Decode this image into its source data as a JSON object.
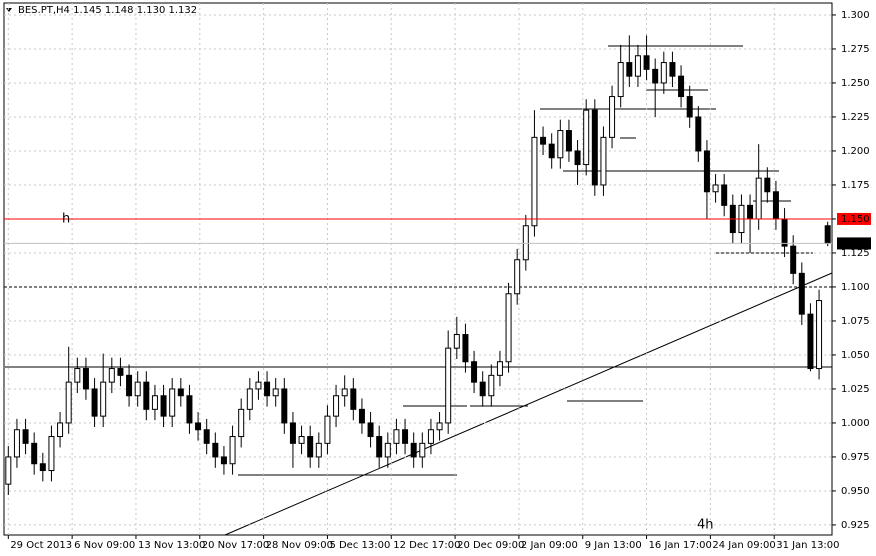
{
  "chart_data": {
    "type": "candlestick",
    "title": "BES.PT,H4  1.145 1.148 1.130 1.132",
    "period_label": "4h",
    "ylim": [
      0.9176,
      1.3088
    ],
    "yticks": [
      {
        "value": 0.925,
        "label": "0.925"
      },
      {
        "value": 0.95,
        "label": "0.950"
      },
      {
        "value": 0.975,
        "label": "0.975"
      },
      {
        "value": 1.0,
        "label": "1.000"
      },
      {
        "value": 1.025,
        "label": "1.025"
      },
      {
        "value": 1.05,
        "label": "1.050"
      },
      {
        "value": 1.075,
        "label": "1.075"
      },
      {
        "value": 1.1,
        "label": "1.100"
      },
      {
        "value": 1.125,
        "label": "1.125"
      },
      {
        "value": 1.15,
        "label": "1.150"
      },
      {
        "value": 1.175,
        "label": "1.175"
      },
      {
        "value": 1.2,
        "label": "1.200"
      },
      {
        "value": 1.225,
        "label": "1.225"
      },
      {
        "value": 1.25,
        "label": "1.250"
      },
      {
        "value": 1.275,
        "label": "1.275"
      },
      {
        "value": 1.3,
        "label": "1.300"
      }
    ],
    "xlim": [
      -0.5,
      95.5
    ],
    "xticks": [
      {
        "value": 0,
        "label": "29 Oct 2013"
      },
      {
        "value": 7.4,
        "label": "6 Nov 09:00"
      },
      {
        "value": 14.8,
        "label": "13 Nov 13:00"
      },
      {
        "value": 22.2,
        "label": "20 Nov 17:00"
      },
      {
        "value": 29.6,
        "label": "28 Nov 09:00"
      },
      {
        "value": 37,
        "label": "5 Dec 13:00"
      },
      {
        "value": 44.4,
        "label": "12 Dec 17:00"
      },
      {
        "value": 51.8,
        "label": "20 Dec 09:00"
      },
      {
        "value": 59.2,
        "label": "2 Jan 09:00"
      },
      {
        "value": 66.6,
        "label": "9 Jan 13:00"
      },
      {
        "value": 74,
        "label": "16 Jan 17:00"
      },
      {
        "value": 81.4,
        "label": "24 Jan 09:00"
      },
      {
        "value": 88.8,
        "label": "31 Jan 13:00"
      }
    ],
    "open": [
      0.955,
      0.975,
      0.995,
      0.985,
      0.97,
      0.965,
      0.99,
      1.0,
      1.03,
      1.04,
      1.025,
      1.005,
      1.03,
      1.04,
      1.035,
      1.02,
      1.03,
      1.01,
      1.02,
      1.005,
      1.025,
      1.02,
      1.0,
      0.995,
      0.985,
      0.975,
      0.97,
      0.99,
      1.01,
      1.025,
      1.03,
      1.02,
      1.025,
      1.0,
      0.985,
      0.99,
      0.975,
      0.985,
      1.005,
      1.02,
      1.025,
      1.01,
      1.0,
      0.99,
      0.975,
      0.985,
      0.995,
      0.985,
      0.975,
      0.985,
      0.995,
      1.0,
      1.055,
      1.065,
      1.045,
      1.03,
      1.02,
      1.035,
      1.045,
      1.095,
      1.12,
      1.145,
      1.21,
      1.205,
      1.195,
      1.215,
      1.2,
      1.19,
      1.23,
      1.175,
      1.21,
      1.24,
      1.265,
      1.255,
      1.27,
      1.26,
      1.25,
      1.265,
      1.255,
      1.24,
      1.225,
      1.2,
      1.17,
      1.175,
      1.16,
      1.14,
      1.16,
      1.15,
      1.18,
      1.17,
      1.15,
      1.13,
      1.11,
      1.08,
      1.04,
      1.145
    ],
    "high": [
      0.983,
      1.003,
      1.003,
      0.993,
      0.978,
      0.998,
      1.008,
      1.056,
      1.048,
      1.048,
      1.033,
      1.051,
      1.048,
      1.048,
      1.043,
      1.038,
      1.038,
      1.028,
      1.028,
      1.033,
      1.033,
      1.028,
      1.008,
      1.003,
      0.993,
      0.983,
      0.998,
      1.018,
      1.033,
      1.038,
      1.038,
      1.033,
      1.033,
      1.008,
      0.998,
      0.998,
      0.993,
      1.013,
      1.028,
      1.035,
      1.033,
      1.018,
      1.008,
      0.998,
      0.993,
      1.003,
      1.003,
      0.993,
      0.993,
      1.003,
      1.008,
      1.068,
      1.078,
      1.073,
      1.053,
      1.038,
      1.043,
      1.053,
      1.103,
      1.128,
      1.153,
      1.23,
      1.218,
      1.213,
      1.223,
      1.223,
      1.208,
      1.238,
      1.238,
      1.218,
      1.248,
      1.278,
      1.285,
      1.278,
      1.285,
      1.268,
      1.273,
      1.273,
      1.263,
      1.248,
      1.233,
      1.208,
      1.183,
      1.183,
      1.168,
      1.168,
      1.168,
      1.205,
      1.188,
      1.178,
      1.158,
      1.138,
      1.118,
      1.088,
      1.098,
      1.148
    ],
    "low": [
      0.947,
      0.967,
      0.977,
      0.962,
      0.957,
      0.957,
      0.982,
      0.992,
      1.022,
      1.017,
      0.997,
      0.997,
      1.022,
      1.027,
      1.012,
      1.012,
      1.002,
      1.002,
      0.997,
      0.997,
      1.012,
      0.992,
      0.987,
      0.977,
      0.967,
      0.962,
      0.962,
      0.982,
      1.002,
      1.017,
      1.012,
      1.012,
      0.992,
      0.967,
      0.977,
      0.967,
      0.967,
      0.977,
      0.997,
      1.012,
      1.002,
      0.992,
      0.982,
      0.967,
      0.967,
      0.977,
      0.977,
      0.967,
      0.967,
      0.977,
      0.987,
      0.992,
      1.047,
      1.037,
      1.022,
      1.012,
      1.012,
      1.027,
      1.037,
      1.087,
      1.112,
      1.137,
      1.197,
      1.187,
      1.187,
      1.192,
      1.175,
      1.182,
      1.167,
      1.167,
      1.202,
      1.232,
      1.247,
      1.247,
      1.252,
      1.225,
      1.242,
      1.247,
      1.232,
      1.217,
      1.192,
      1.15,
      1.162,
      1.152,
      1.132,
      1.132,
      1.125,
      1.142,
      1.162,
      1.142,
      1.122,
      1.102,
      1.072,
      1.038,
      1.032,
      1.13
    ],
    "close": [
      0.975,
      0.995,
      0.985,
      0.97,
      0.965,
      0.99,
      1.0,
      1.03,
      1.04,
      1.025,
      1.005,
      1.03,
      1.04,
      1.035,
      1.02,
      1.03,
      1.01,
      1.02,
      1.005,
      1.025,
      1.02,
      1.0,
      0.995,
      0.985,
      0.975,
      0.97,
      0.99,
      1.01,
      1.025,
      1.03,
      1.02,
      1.025,
      1.0,
      0.985,
      0.99,
      0.975,
      0.985,
      1.005,
      1.02,
      1.025,
      1.01,
      1.0,
      0.99,
      0.975,
      0.985,
      0.995,
      0.985,
      0.975,
      0.985,
      0.995,
      1.0,
      1.055,
      1.065,
      1.045,
      1.03,
      1.02,
      1.035,
      1.045,
      1.095,
      1.12,
      1.145,
      1.21,
      1.205,
      1.195,
      1.215,
      1.2,
      1.19,
      1.23,
      1.175,
      1.21,
      1.24,
      1.265,
      1.255,
      1.27,
      1.26,
      1.25,
      1.265,
      1.255,
      1.24,
      1.225,
      1.2,
      1.17,
      1.175,
      1.16,
      1.14,
      1.16,
      1.15,
      1.18,
      1.17,
      1.15,
      1.13,
      1.11,
      1.08,
      1.04,
      1.09,
      1.132
    ],
    "hline": {
      "value": 1.15,
      "label": "1.150",
      "text": "h",
      "color": "#ff0000"
    },
    "last_price": {
      "value": 1.132,
      "label": "1.132"
    },
    "dotted_level": 1.1,
    "grid": true
  }
}
